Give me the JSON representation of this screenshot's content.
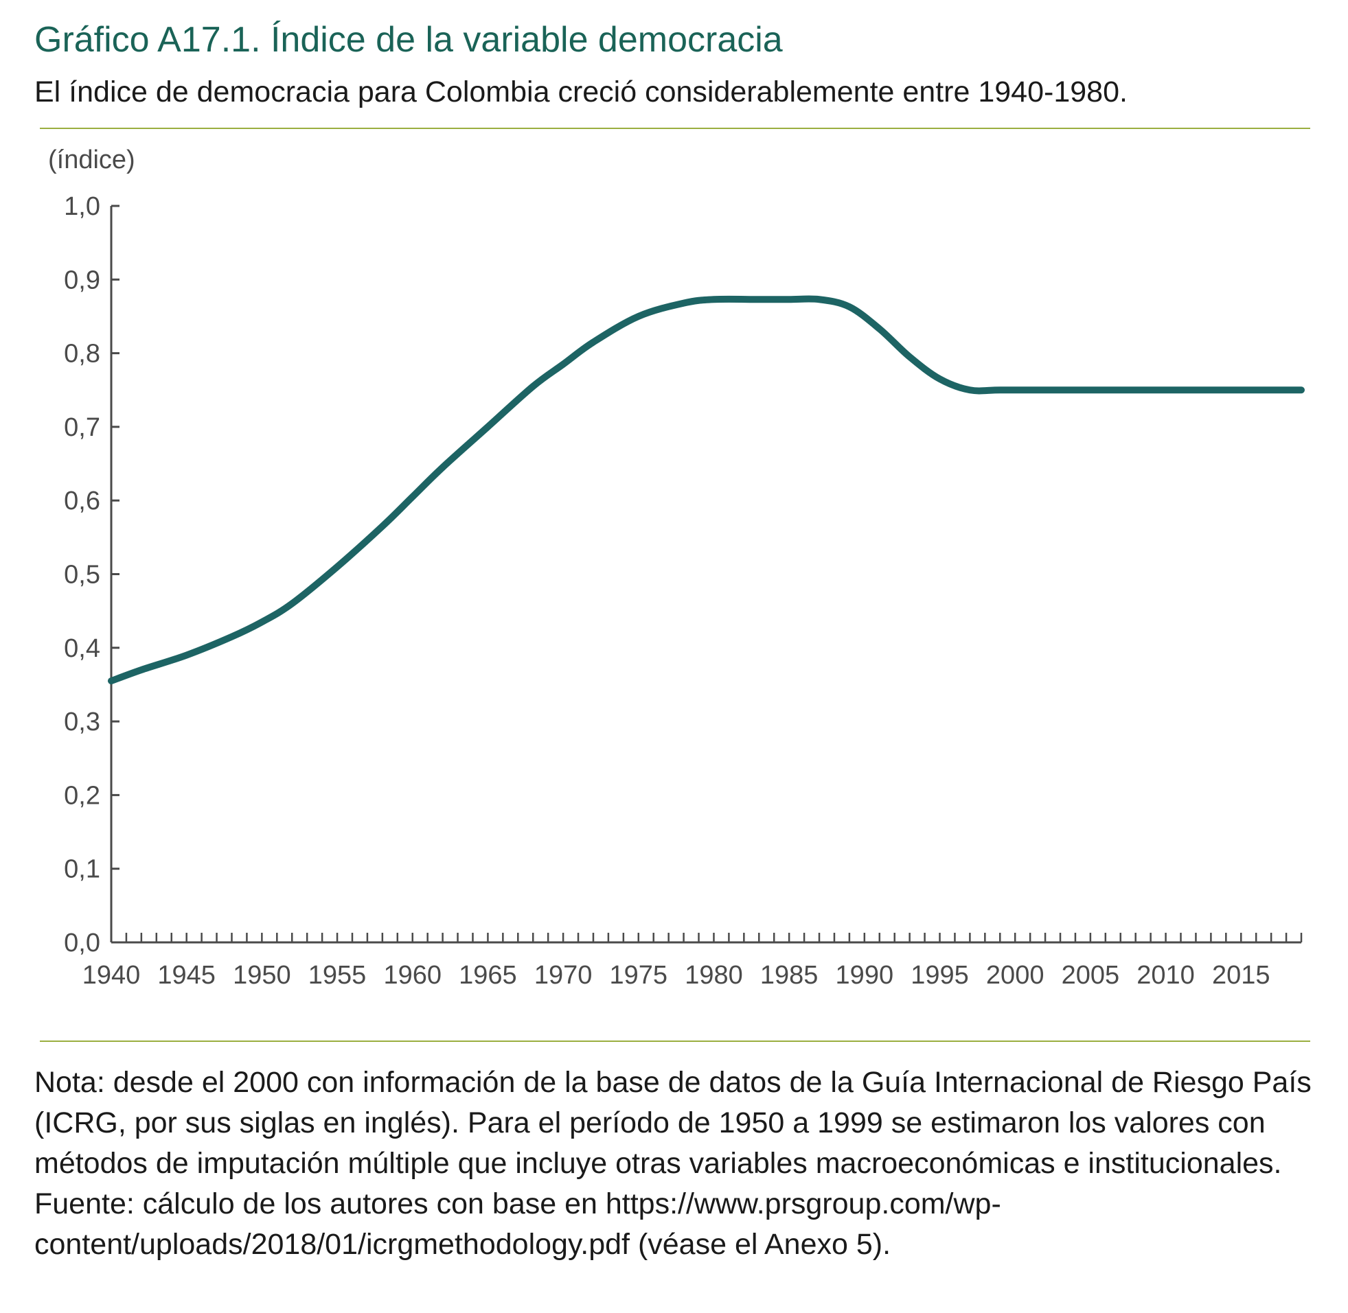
{
  "header": {
    "title": "Gráfico A17.1. Índice de la variable democracia",
    "subtitle": "El índice de democracia para Colombia creció considerablemente entre 1940-1980."
  },
  "colors": {
    "title": "#1a6357",
    "rule": "#9aae3f",
    "line": "#1d6464",
    "axis": "#4a4a4a"
  },
  "chart_data": {
    "type": "line",
    "title": "Índice de la variable democracia",
    "ylabel": "(índice)",
    "xlabel": "",
    "ylim": [
      0,
      1.0
    ],
    "xlim": [
      1940,
      2019
    ],
    "y_ticks": [
      "0,0",
      "0,1",
      "0,2",
      "0,3",
      "0,4",
      "0,5",
      "0,6",
      "0,7",
      "0,8",
      "0,9",
      "1,0"
    ],
    "x_ticks": [
      "1940",
      "1945",
      "1950",
      "1955",
      "1960",
      "1965",
      "1970",
      "1975",
      "1980",
      "1985",
      "1990",
      "1995",
      "2000",
      "2005",
      "2010",
      "2015"
    ],
    "grid": false,
    "series": [
      {
        "name": "Índice de democracia",
        "x": [
          1940,
          1942,
          1945,
          1948,
          1950,
          1952,
          1955,
          1958,
          1960,
          1962,
          1965,
          1968,
          1970,
          1972,
          1975,
          1978,
          1980,
          1983,
          1985,
          1987,
          1989,
          1991,
          1993,
          1995,
          1997,
          1999,
          2002,
          2005,
          2010,
          2015,
          2019
        ],
        "y": [
          0.355,
          0.37,
          0.39,
          0.415,
          0.435,
          0.46,
          0.51,
          0.565,
          0.605,
          0.645,
          0.7,
          0.755,
          0.785,
          0.815,
          0.85,
          0.868,
          0.873,
          0.873,
          0.873,
          0.873,
          0.863,
          0.833,
          0.795,
          0.765,
          0.75,
          0.75,
          0.75,
          0.75,
          0.75,
          0.75,
          0.75
        ]
      }
    ]
  },
  "notes": {
    "nota": "Nota: desde el 2000 con información de la base de datos de la Guía Internacional de Riesgo País (ICRG, por sus siglas en inglés).  Para el período de 1950 a 1999 se estimaron los valores con métodos de imputación múltiple que incluye otras variables macroeconómicas e institucionales.",
    "fuente": "Fuente: cálculo de los autores con base en https://www.prsgroup.com/wp-content/uploads/2018/01/icrgmethodology.pdf (véase el Anexo 5)."
  }
}
